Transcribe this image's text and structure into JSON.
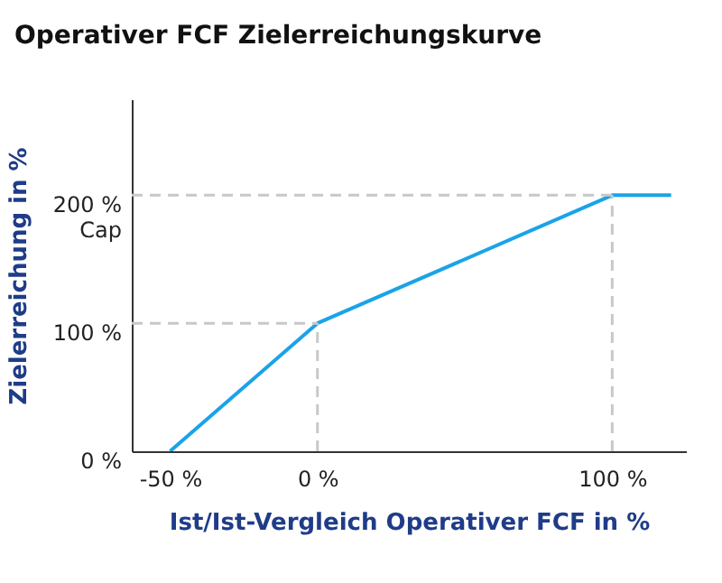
{
  "chart_data": {
    "type": "line",
    "title": "Operativer FCF Zielerreichungskurve",
    "xlabel": "Ist/Ist-Vergleich Operativer FCF in %",
    "ylabel": "Zielerreichung in %",
    "x": [
      -50,
      0,
      100,
      120
    ],
    "series": [
      {
        "color": "#1aa3e8",
        "values": [
          0,
          100,
          200,
          200
        ]
      }
    ],
    "xlim": [
      -63,
      125
    ],
    "xticks": [
      {
        "value": -50,
        "label": "-50 %"
      },
      {
        "value": 0,
        "label": "0 %"
      },
      {
        "value": 100,
        "label": "100 %"
      }
    ],
    "ylim": [
      0,
      275
    ],
    "yticks": [
      {
        "value": 0,
        "label": "0 %"
      },
      {
        "value": 100,
        "label": "100 %"
      },
      {
        "value": 200,
        "label": "200 %\nCap"
      }
    ],
    "ref_lines": [
      {
        "axis": "y",
        "value": 100,
        "color": "#c8c8c8",
        "line_style": "dashed"
      },
      {
        "axis": "y",
        "value": 200,
        "color": "#c8c8c8",
        "line_style": "dashed"
      },
      {
        "axis": "x",
        "value": 0,
        "color": "#c8c8c8",
        "line_style": "dashed"
      },
      {
        "axis": "x",
        "value": 100,
        "color": "#c8c8c8",
        "line_style": "dashed"
      }
    ],
    "marker": "none",
    "line_style": "solid"
  }
}
